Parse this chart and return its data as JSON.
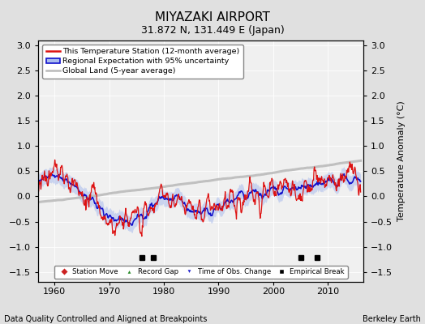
{
  "title": "MIYAZAKI AIRPORT",
  "subtitle": "31.872 N, 131.449 E (Japan)",
  "ylabel": "Temperature Anomaly (°C)",
  "xlabel_left": "Data Quality Controlled and Aligned at Breakpoints",
  "xlabel_right": "Berkeley Earth",
  "ylim": [
    -1.7,
    3.1
  ],
  "xlim": [
    1957,
    2016.5
  ],
  "yticks": [
    -1.5,
    -1.0,
    -0.5,
    0.0,
    0.5,
    1.0,
    1.5,
    2.0,
    2.5,
    3.0
  ],
  "xticks": [
    1960,
    1970,
    1980,
    1990,
    2000,
    2010
  ],
  "bg_color": "#e0e0e0",
  "plot_bg_color": "#f0f0f0",
  "legend_labels": [
    "This Temperature Station (12-month average)",
    "Regional Expectation with 95% uncertainty",
    "Global Land (5-year average)"
  ],
  "empirical_break_years": [
    1976,
    1978,
    2005,
    2008
  ],
  "title_fontsize": 11,
  "subtitle_fontsize": 9,
  "tick_fontsize": 8,
  "label_fontsize": 7.5
}
